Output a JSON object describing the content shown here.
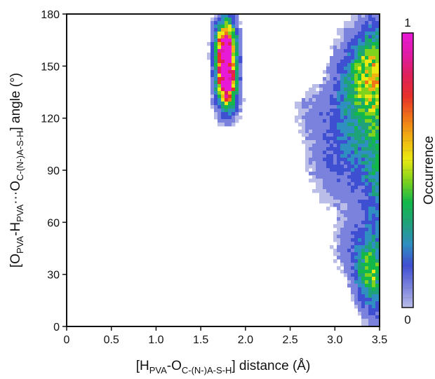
{
  "chart_data": {
    "type": "heatmap",
    "x_axis": {
      "label_parts": [
        {
          "text": "[H",
          "baseline": "normal"
        },
        {
          "text": "PVA",
          "baseline": "sub"
        },
        {
          "text": "-O",
          "baseline": "normal"
        },
        {
          "text": "C-(N-)A-S-H",
          "baseline": "sub"
        },
        {
          "text": "] distance (Å)",
          "baseline": "normal"
        }
      ],
      "min": 0,
      "max": 3.5,
      "ticks": [
        "0",
        "0.5",
        "1.0",
        "1.5",
        "2.0",
        "2.5",
        "3.0",
        "3.5"
      ],
      "tick_values": [
        0,
        0.5,
        1.0,
        1.5,
        2.0,
        2.5,
        3.0,
        3.5
      ]
    },
    "y_axis": {
      "label_parts": [
        {
          "text": "[O",
          "baseline": "normal"
        },
        {
          "text": "PVA",
          "baseline": "sub"
        },
        {
          "text": "-H",
          "baseline": "normal"
        },
        {
          "text": "PVA",
          "baseline": "sub"
        },
        {
          "text": "···O",
          "baseline": "normal"
        },
        {
          "text": "C-(N-)A-S-H",
          "baseline": "sub"
        },
        {
          "text": "] angle (°)",
          "baseline": "normal"
        }
      ],
      "min": 0,
      "max": 180,
      "ticks": [
        "0",
        "30",
        "60",
        "90",
        "120",
        "150",
        "180"
      ],
      "tick_values": [
        0,
        30,
        60,
        90,
        120,
        150,
        180
      ]
    },
    "colorbar": {
      "label": "Occurrence",
      "min_label": "0",
      "max_label": "1",
      "stops": [
        "#b9bde8",
        "#7a82dd",
        "#3f4fd2",
        "#2f8fc0",
        "#1fa27a",
        "#12b94a",
        "#7fd31c",
        "#eaea12",
        "#f0b312",
        "#f07418",
        "#e8302a",
        "#e0205a",
        "#e21aa8",
        "#e81ad8"
      ]
    },
    "regions": [
      {
        "name": "peak",
        "x": 1.78,
        "y": 152,
        "sx": 0.075,
        "sy": 12,
        "amp": 1.0,
        "rot": 0
      },
      {
        "name": "peak2",
        "x": 1.8,
        "y": 140,
        "sx": 0.06,
        "sy": 6,
        "amp": 0.55,
        "rot": 0
      },
      {
        "name": "tail-top",
        "x": 1.78,
        "y": 165,
        "sx": 0.08,
        "sy": 10,
        "amp": 0.45,
        "rot": 0
      },
      {
        "name": "tail-bottom",
        "x": 1.8,
        "y": 130,
        "sx": 0.09,
        "sy": 8,
        "amp": 0.3,
        "rot": 0
      },
      {
        "name": "right-upper",
        "x": 3.3,
        "y": 135,
        "sx": 0.22,
        "sy": 22,
        "amp": 0.32,
        "rot": 0
      },
      {
        "name": "right-upper2",
        "x": 3.4,
        "y": 150,
        "sx": 0.14,
        "sy": 14,
        "amp": 0.25,
        "rot": 0
      },
      {
        "name": "right-mid",
        "x": 3.3,
        "y": 95,
        "sx": 0.25,
        "sy": 22,
        "amp": 0.14,
        "rot": 0
      },
      {
        "name": "right-edge",
        "x": 3.5,
        "y": 90,
        "sx": 0.12,
        "sy": 70,
        "amp": 0.2,
        "rot": 0
      },
      {
        "name": "right-low",
        "x": 3.38,
        "y": 28,
        "sx": 0.11,
        "sy": 12,
        "amp": 0.35,
        "rot": 0
      },
      {
        "name": "right-low2",
        "x": 3.25,
        "y": 45,
        "sx": 0.18,
        "sy": 12,
        "amp": 0.14,
        "rot": 0
      },
      {
        "name": "diag",
        "x": 2.9,
        "y": 100,
        "sx": 0.2,
        "sy": 20,
        "amp": 0.09,
        "rot": 0
      },
      {
        "name": "diag2",
        "x": 2.7,
        "y": 125,
        "sx": 0.15,
        "sy": 10,
        "amp": 0.06,
        "rot": 0
      }
    ],
    "grid": false,
    "legend": "right"
  }
}
